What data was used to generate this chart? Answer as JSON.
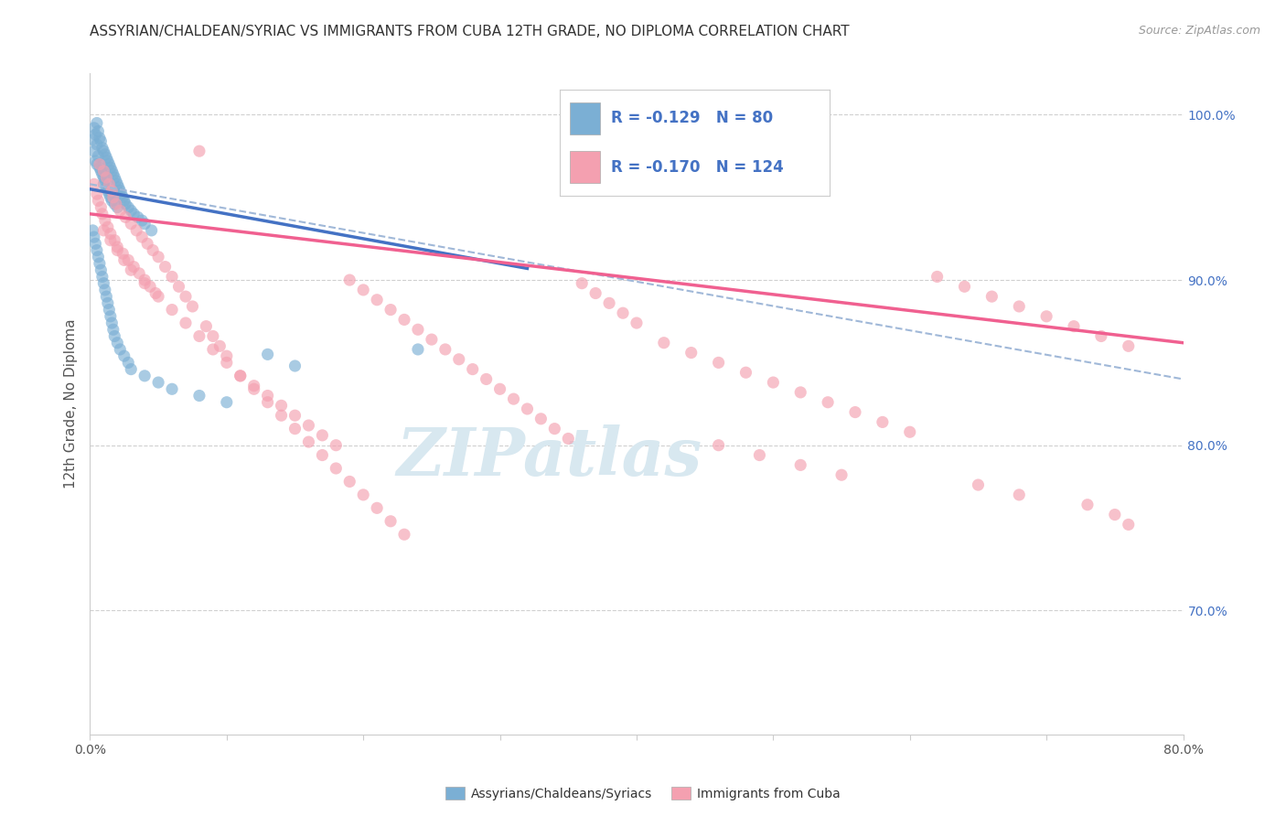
{
  "title": "ASSYRIAN/CHALDEAN/SYRIAC VS IMMIGRANTS FROM CUBA 12TH GRADE, NO DIPLOMA CORRELATION CHART",
  "source_text": "Source: ZipAtlas.com",
  "ylabel": "12th Grade, No Diploma",
  "ylabel_right_ticks": [
    "100.0%",
    "90.0%",
    "80.0%",
    "70.0%"
  ],
  "ylabel_right_vals": [
    1.0,
    0.9,
    0.8,
    0.7
  ],
  "legend_label1": "Assyrians/Chaldeans/Syriacs",
  "legend_label2": "Immigrants from Cuba",
  "legend_R1": "-0.129",
  "legend_N1": "80",
  "legend_R2": "-0.170",
  "legend_N2": "124",
  "blue_color": "#7bafd4",
  "pink_color": "#f4a0b0",
  "blue_line_color": "#4472c4",
  "pink_line_color": "#f06090",
  "dashed_line_color": "#a0b8d8",
  "xmin": 0.0,
  "xmax": 0.8,
  "ymin": 0.625,
  "ymax": 1.025,
  "blue_scatter_x": [
    0.002,
    0.003,
    0.003,
    0.004,
    0.004,
    0.005,
    0.005,
    0.005,
    0.006,
    0.006,
    0.007,
    0.007,
    0.008,
    0.008,
    0.009,
    0.009,
    0.01,
    0.01,
    0.01,
    0.011,
    0.011,
    0.012,
    0.012,
    0.013,
    0.013,
    0.014,
    0.014,
    0.015,
    0.015,
    0.016,
    0.016,
    0.017,
    0.018,
    0.018,
    0.019,
    0.02,
    0.02,
    0.021,
    0.022,
    0.023,
    0.024,
    0.025,
    0.026,
    0.028,
    0.03,
    0.032,
    0.035,
    0.038,
    0.04,
    0.045,
    0.002,
    0.003,
    0.004,
    0.005,
    0.006,
    0.007,
    0.008,
    0.009,
    0.01,
    0.011,
    0.012,
    0.013,
    0.014,
    0.015,
    0.016,
    0.017,
    0.018,
    0.02,
    0.022,
    0.025,
    0.028,
    0.03,
    0.04,
    0.05,
    0.06,
    0.08,
    0.1,
    0.13,
    0.15,
    0.24
  ],
  "blue_scatter_y": [
    0.985,
    0.992,
    0.978,
    0.988,
    0.972,
    0.995,
    0.982,
    0.97,
    0.99,
    0.975,
    0.986,
    0.968,
    0.984,
    0.966,
    0.98,
    0.964,
    0.978,
    0.962,
    0.958,
    0.976,
    0.96,
    0.974,
    0.956,
    0.972,
    0.954,
    0.97,
    0.952,
    0.968,
    0.95,
    0.966,
    0.948,
    0.964,
    0.962,
    0.946,
    0.96,
    0.958,
    0.944,
    0.956,
    0.954,
    0.952,
    0.95,
    0.948,
    0.946,
    0.944,
    0.942,
    0.94,
    0.938,
    0.936,
    0.934,
    0.93,
    0.93,
    0.926,
    0.922,
    0.918,
    0.914,
    0.91,
    0.906,
    0.902,
    0.898,
    0.894,
    0.89,
    0.886,
    0.882,
    0.878,
    0.874,
    0.87,
    0.866,
    0.862,
    0.858,
    0.854,
    0.85,
    0.846,
    0.842,
    0.838,
    0.834,
    0.83,
    0.826,
    0.855,
    0.848,
    0.858
  ],
  "pink_scatter_x": [
    0.003,
    0.005,
    0.006,
    0.007,
    0.008,
    0.009,
    0.01,
    0.011,
    0.012,
    0.013,
    0.014,
    0.015,
    0.016,
    0.017,
    0.018,
    0.019,
    0.02,
    0.022,
    0.024,
    0.026,
    0.028,
    0.03,
    0.032,
    0.034,
    0.036,
    0.038,
    0.04,
    0.042,
    0.044,
    0.046,
    0.048,
    0.05,
    0.055,
    0.06,
    0.065,
    0.07,
    0.075,
    0.08,
    0.085,
    0.09,
    0.095,
    0.1,
    0.11,
    0.12,
    0.13,
    0.14,
    0.15,
    0.16,
    0.17,
    0.18,
    0.19,
    0.2,
    0.21,
    0.22,
    0.23,
    0.24,
    0.25,
    0.26,
    0.27,
    0.28,
    0.29,
    0.3,
    0.31,
    0.32,
    0.33,
    0.34,
    0.35,
    0.36,
    0.37,
    0.38,
    0.39,
    0.4,
    0.42,
    0.44,
    0.46,
    0.48,
    0.5,
    0.52,
    0.54,
    0.56,
    0.58,
    0.6,
    0.62,
    0.64,
    0.66,
    0.68,
    0.7,
    0.72,
    0.74,
    0.76,
    0.01,
    0.015,
    0.02,
    0.025,
    0.03,
    0.04,
    0.05,
    0.06,
    0.07,
    0.08,
    0.09,
    0.1,
    0.11,
    0.12,
    0.13,
    0.14,
    0.15,
    0.16,
    0.17,
    0.18,
    0.19,
    0.2,
    0.21,
    0.22,
    0.23,
    0.46,
    0.49,
    0.52,
    0.55,
    0.65,
    0.68,
    0.73,
    0.75,
    0.76
  ],
  "pink_scatter_y": [
    0.958,
    0.952,
    0.948,
    0.97,
    0.944,
    0.94,
    0.966,
    0.936,
    0.962,
    0.932,
    0.958,
    0.928,
    0.954,
    0.95,
    0.924,
    0.946,
    0.92,
    0.942,
    0.916,
    0.938,
    0.912,
    0.934,
    0.908,
    0.93,
    0.904,
    0.926,
    0.9,
    0.922,
    0.896,
    0.918,
    0.892,
    0.914,
    0.908,
    0.902,
    0.896,
    0.89,
    0.884,
    0.978,
    0.872,
    0.866,
    0.86,
    0.854,
    0.842,
    0.836,
    0.83,
    0.824,
    0.818,
    0.812,
    0.806,
    0.8,
    0.9,
    0.894,
    0.888,
    0.882,
    0.876,
    0.87,
    0.864,
    0.858,
    0.852,
    0.846,
    0.84,
    0.834,
    0.828,
    0.822,
    0.816,
    0.81,
    0.804,
    0.898,
    0.892,
    0.886,
    0.88,
    0.874,
    0.862,
    0.856,
    0.85,
    0.844,
    0.838,
    0.832,
    0.826,
    0.82,
    0.814,
    0.808,
    0.902,
    0.896,
    0.89,
    0.884,
    0.878,
    0.872,
    0.866,
    0.86,
    0.93,
    0.924,
    0.918,
    0.912,
    0.906,
    0.898,
    0.89,
    0.882,
    0.874,
    0.866,
    0.858,
    0.85,
    0.842,
    0.834,
    0.826,
    0.818,
    0.81,
    0.802,
    0.794,
    0.786,
    0.778,
    0.77,
    0.762,
    0.754,
    0.746,
    0.8,
    0.794,
    0.788,
    0.782,
    0.776,
    0.77,
    0.764,
    0.758,
    0.752
  ],
  "blue_trend_x": [
    0.0,
    0.32
  ],
  "blue_trend_y": [
    0.955,
    0.907
  ],
  "pink_trend_x": [
    0.0,
    0.8
  ],
  "pink_trend_y": [
    0.94,
    0.862
  ],
  "dashed_trend_x": [
    0.0,
    0.8
  ],
  "dashed_trend_y": [
    0.958,
    0.84
  ],
  "background_color": "#ffffff",
  "grid_color": "#d0d0d0",
  "watermark_color": "#d8e8f0",
  "watermark_text": "ZIPatlas"
}
